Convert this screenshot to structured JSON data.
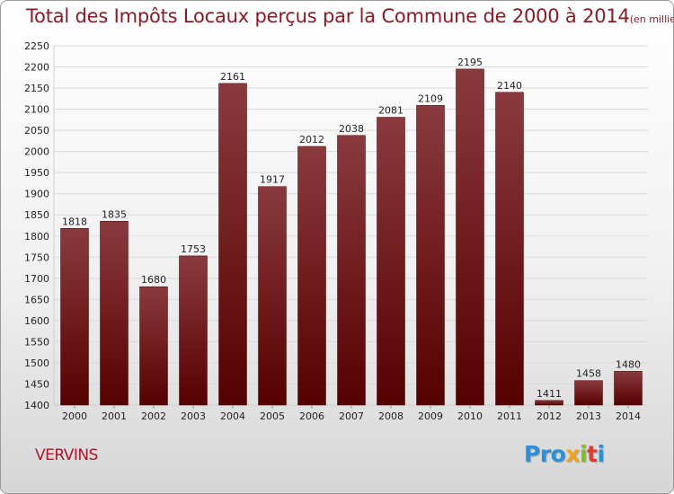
{
  "chart_data": {
    "type": "bar",
    "title": "Total des Impôts Locaux perçus par la Commune de 2000 à 2014",
    "title_unit": "(en milliers d'€)",
    "categories": [
      "2000",
      "2001",
      "2002",
      "2003",
      "2004",
      "2005",
      "2006",
      "2007",
      "2008",
      "2009",
      "2010",
      "2011",
      "2012",
      "2013",
      "2014"
    ],
    "values": [
      1818,
      1835,
      1680,
      1753,
      2161,
      1917,
      2012,
      2038,
      2081,
      2109,
      2195,
      2140,
      1411,
      1458,
      1480
    ],
    "ylim": [
      1400,
      2250
    ],
    "yticks": [
      1400,
      1450,
      1500,
      1550,
      1600,
      1650,
      1700,
      1750,
      1800,
      1850,
      1900,
      1950,
      2000,
      2050,
      2100,
      2150,
      2200,
      2250
    ],
    "grid": true,
    "xlabel": "",
    "ylabel": "",
    "bar_color_top": "#8a3a3f",
    "bar_color_bottom": "#560000"
  },
  "footer": {
    "commune": "VERVINS",
    "logo": {
      "p1": "Pro",
      "p2": "x",
      "p3": "i",
      "p4": "t",
      "p5": "i"
    }
  }
}
